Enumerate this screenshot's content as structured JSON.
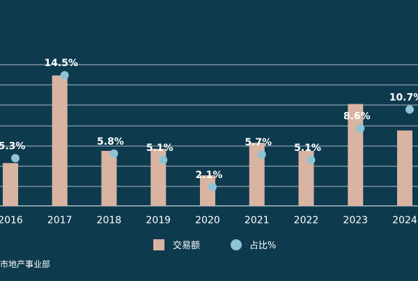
{
  "chart_data": {
    "type": "bar",
    "categories": [
      "2016",
      "2017",
      "2018",
      "2019",
      "2020",
      "2021",
      "2022",
      "2023",
      "2024"
    ],
    "series": [
      {
        "name": "交易额",
        "type": "bar",
        "color": "#d9b4a2",
        "values": [
          2.1,
          6.4,
          2.7,
          2.8,
          1.5,
          3.1,
          2.7,
          5.0,
          3.7
        ]
      },
      {
        "name": "占比%",
        "type": "scatter",
        "color": "#8ec4d6",
        "values": [
          5.3,
          14.5,
          5.8,
          5.1,
          2.1,
          5.7,
          5.1,
          8.6,
          10.7
        ],
        "labels": [
          "5.3%",
          "14.5%",
          "5.8%",
          "5.1%",
          "2.1%",
          "5.7%",
          "5.1%",
          "8.6%",
          "10.7%"
        ]
      }
    ],
    "grid": true,
    "legend_position": "bottom-center"
  },
  "footer": {
    "source_text": "市地产事业部"
  },
  "colors": {
    "background": "#0e3a4e",
    "grid": "#c9d6dc",
    "axis_text": "#ffffff"
  }
}
